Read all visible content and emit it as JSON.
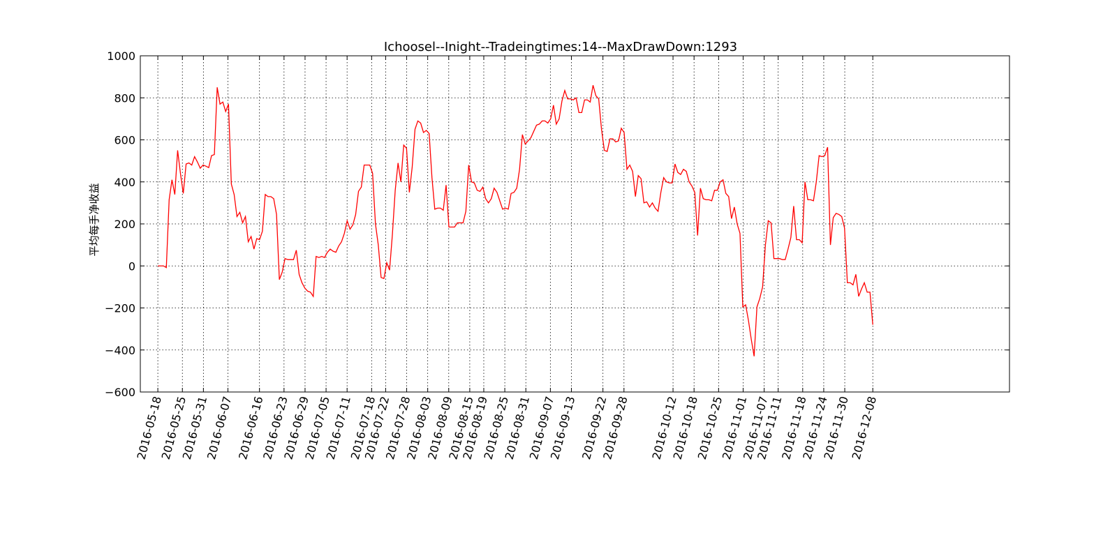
{
  "chart_data": {
    "type": "line",
    "title": "Ichoosel--Inight--Tradeingtimes:14--MaxDrawDown:1293",
    "xlabel": "",
    "ylabel": "平均每手净收益",
    "ylim": [
      -600,
      1000
    ],
    "yticks": [
      1000,
      800,
      600,
      400,
      200,
      0,
      -200,
      -400,
      -600
    ],
    "ytick_labels": [
      "1000",
      "800",
      "600",
      "400",
      "200",
      "0",
      "−200",
      "−400",
      "−600"
    ],
    "grid": true,
    "grid_style": "dotted",
    "line_color": "#ff0000",
    "x_range": [
      "2016-05-13",
      "2017-01-16"
    ],
    "x_tick_labels": [
      "2016-05-18",
      "2016-05-25",
      "2016-05-31",
      "2016-06-07",
      "2016-06-16",
      "2016-06-23",
      "2016-06-29",
      "2016-07-05",
      "2016-07-11",
      "2016-07-18",
      "2016-07-22",
      "2016-07-28",
      "2016-08-03",
      "2016-08-09",
      "2016-08-15",
      "2016-08-19",
      "2016-08-25",
      "2016-08-31",
      "2016-09-07",
      "2016-09-13",
      "2016-09-22",
      "2016-09-28",
      "2016-10-12",
      "2016-10-18",
      "2016-10-25",
      "2016-11-01",
      "2016-11-07",
      "2016-11-11",
      "2016-11-18",
      "2016-11-24",
      "2016-11-30",
      "2016-12-08"
    ],
    "series": [
      {
        "values": [
          0,
          0,
          0,
          -8,
          315,
          410,
          340,
          550,
          440,
          345,
          485,
          490,
          480,
          520,
          495,
          465,
          480,
          475,
          468,
          525,
          530,
          850,
          770,
          780,
          735,
          770,
          390,
          340,
          235,
          255,
          205,
          235,
          115,
          140,
          80,
          130,
          125,
          165,
          340,
          330,
          330,
          320,
          245,
          -65,
          -30,
          35,
          30,
          30,
          30,
          75,
          -40,
          -80,
          -105,
          -120,
          -125,
          -145,
          45,
          40,
          45,
          40,
          65,
          80,
          70,
          65,
          95,
          115,
          155,
          215,
          175,
          195,
          245,
          355,
          375,
          480,
          480,
          480,
          440,
          200,
          100,
          -55,
          -60,
          15,
          -20,
          150,
          360,
          490,
          400,
          575,
          560,
          350,
          470,
          650,
          690,
          680,
          635,
          645,
          630,
          420,
          270,
          275,
          275,
          265,
          385,
          185,
          185,
          185,
          205,
          205,
          205,
          260,
          480,
          400,
          395,
          360,
          355,
          375,
          320,
          300,
          320,
          370,
          350,
          310,
          270,
          275,
          270,
          345,
          350,
          370,
          460,
          625,
          580,
          595,
          610,
          640,
          670,
          675,
          690,
          690,
          680,
          700,
          765,
          675,
          700,
          785,
          835,
          795,
          795,
          790,
          800,
          730,
          730,
          790,
          790,
          780,
          860,
          810,
          795,
          650,
          550,
          545,
          605,
          605,
          590,
          595,
          655,
          635,
          460,
          480,
          450,
          330,
          430,
          415,
          300,
          305,
          280,
          300,
          275,
          260,
          350,
          420,
          400,
          395,
          395,
          485,
          445,
          435,
          460,
          450,
          400,
          380,
          350,
          145,
          370,
          320,
          315,
          315,
          310,
          360,
          360,
          400,
          410,
          345,
          330,
          225,
          280,
          200,
          155,
          -195,
          -185,
          -260,
          -350,
          -430,
          -195,
          -155,
          -100,
          100,
          215,
          205,
          35,
          35,
          35,
          30,
          30,
          80,
          135,
          285,
          125,
          125,
          110,
          400,
          315,
          315,
          310,
          400,
          525,
          520,
          525,
          565,
          100,
          230,
          250,
          245,
          235,
          180,
          -80,
          -80,
          -90,
          -40,
          -145,
          -110,
          -80,
          -125,
          -125,
          -280
        ]
      }
    ]
  }
}
